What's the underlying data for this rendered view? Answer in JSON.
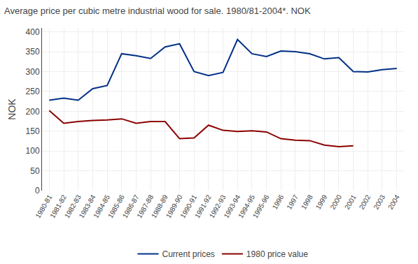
{
  "chart_data": {
    "type": "line",
    "title": "Average price per cubic metre industrial wood for sale. 1980/81-2004*. NOK",
    "ylabel": "NOK",
    "categories": [
      "1980-81",
      "1981-82",
      "1982-83",
      "1983-84",
      "1984-85",
      "1985-86",
      "1986-87",
      "1987-88",
      "1988-89",
      "1989-90",
      "1990-91",
      "1991-92",
      "1992-93",
      "1993-94",
      "1994-95",
      "1995-96",
      "1996",
      "1997",
      "1998",
      "1999",
      "2000",
      "2001",
      "2002",
      "2003",
      "2004"
    ],
    "series": [
      {
        "name": "Current prices",
        "color": "#003087",
        "values": [
          228,
          233,
          228,
          257,
          265,
          345,
          340,
          333,
          362,
          370,
          300,
          290,
          298,
          381,
          345,
          338,
          352,
          350,
          345,
          332,
          335,
          300,
          299,
          305,
          308
        ]
      },
      {
        "name": "1980 price value",
        "color": "#8B0000",
        "values": [
          202,
          170,
          174,
          177,
          178,
          181,
          170,
          174,
          174,
          131,
          133,
          165,
          152,
          149,
          151,
          148,
          131,
          127,
          126,
          115,
          111,
          113,
          null,
          null,
          null
        ]
      }
    ],
    "ylim": [
      0,
      410
    ],
    "yticks": [
      0,
      50,
      100,
      150,
      200,
      250,
      300,
      350,
      400
    ],
    "grid": true,
    "legend": "bottom"
  }
}
